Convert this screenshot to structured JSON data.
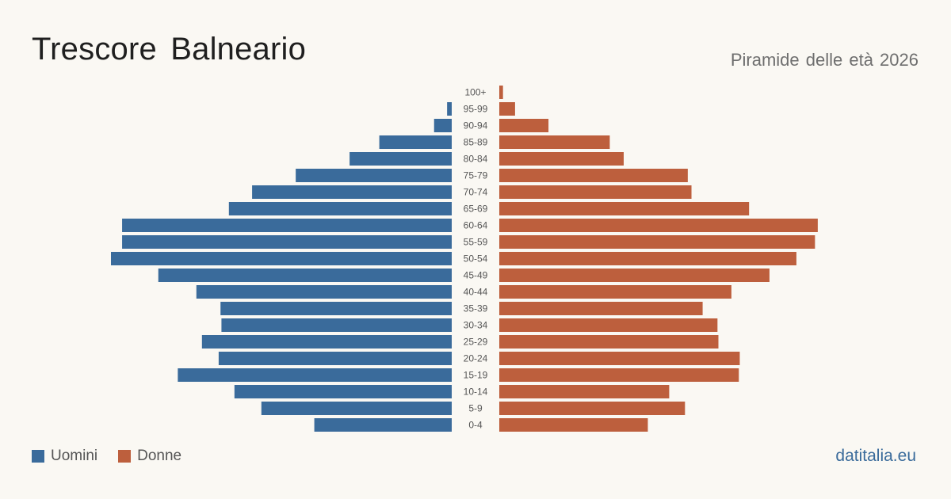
{
  "title": "Trescore  Balneario",
  "subtitle": "Piramide delle età 2026",
  "brand": "datitalia.eu",
  "legend": {
    "men_label": "Uomini",
    "women_label": "Donne"
  },
  "colors": {
    "men": "#3a6b9b",
    "women": "#bd5f3d",
    "background": "#faf8f3"
  },
  "chart_data": {
    "type": "bar",
    "orientation": "horizontal",
    "layout": "population-pyramid",
    "title": "Trescore  Balneario",
    "subtitle": "Piramide delle età 2026",
    "categories": [
      "100+",
      "95-99",
      "90-94",
      "85-89",
      "80-84",
      "75-79",
      "70-74",
      "65-69",
      "60-64",
      "55-59",
      "50-54",
      "45-49",
      "40-44",
      "35-39",
      "30-34",
      "25-29",
      "20-24",
      "15-19",
      "10-14",
      "5-9",
      "0-4"
    ],
    "series": [
      {
        "name": "Uomini",
        "color": "#3a6b9b",
        "values": [
          0,
          5,
          19,
          78,
          110,
          168,
          215,
          240,
          355,
          355,
          367,
          316,
          275,
          249,
          248,
          269,
          251,
          295,
          234,
          205,
          148
        ]
      },
      {
        "name": "Donne",
        "color": "#bd5f3d",
        "values": [
          4,
          17,
          53,
          119,
          134,
          203,
          207,
          269,
          343,
          340,
          320,
          291,
          250,
          219,
          235,
          236,
          259,
          258,
          183,
          200,
          160
        ]
      }
    ],
    "max_value": 367,
    "legend_position": "bottom-left",
    "grid": false
  }
}
